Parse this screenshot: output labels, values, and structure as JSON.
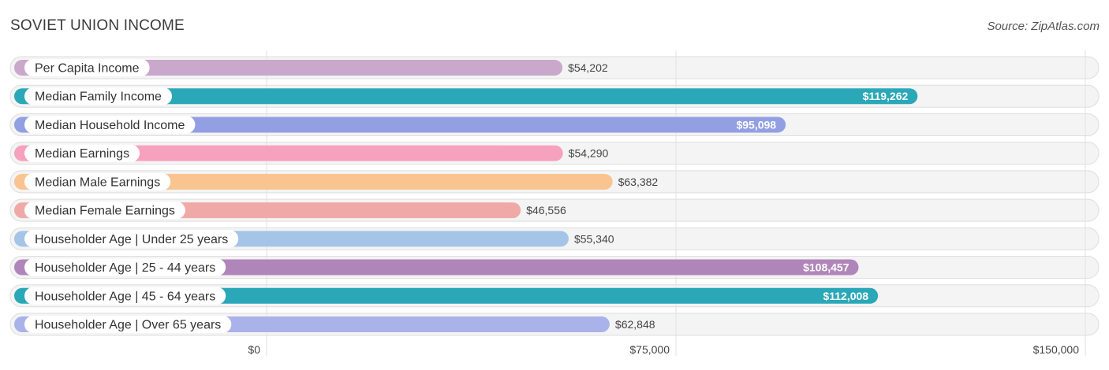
{
  "chart_data": {
    "type": "bar",
    "orientation": "horizontal",
    "title": "SOVIET UNION INCOME",
    "source": "Source: ZipAtlas.com",
    "categories": [
      "Per Capita Income",
      "Median Family Income",
      "Median Household Income",
      "Median Earnings",
      "Median Male Earnings",
      "Median Female Earnings",
      "Householder Age | Under 25 years",
      "Householder Age | 25 - 44 years",
      "Householder Age | 45 - 64 years",
      "Householder Age | Over 65 years"
    ],
    "values": [
      54202,
      119262,
      95098,
      54290,
      63382,
      46556,
      55340,
      108457,
      112008,
      62848
    ],
    "value_labels": [
      "$54,202",
      "$119,262",
      "$95,098",
      "$54,290",
      "$63,382",
      "$46,556",
      "$55,340",
      "$108,457",
      "$112,008",
      "$62,848"
    ],
    "colors": [
      "#c9a8cc",
      "#2aa8b8",
      "#929fe2",
      "#f6a1bd",
      "#f9c490",
      "#efaaa8",
      "#a4c4e8",
      "#b085ba",
      "#2aa8b8",
      "#a9b2e9"
    ],
    "xlim": [
      0,
      150000
    ],
    "ticks": [
      0,
      75000,
      150000
    ],
    "tick_labels": [
      "$0",
      "$75,000",
      "$150,000"
    ],
    "xlabel": "",
    "ylabel": "",
    "grid": true
  }
}
